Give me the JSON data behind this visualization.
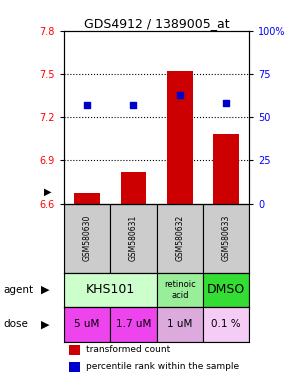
{
  "title": "GDS4912 / 1389005_at",
  "samples": [
    "GSM580630",
    "GSM580631",
    "GSM580632",
    "GSM580633"
  ],
  "bar_values": [
    6.67,
    6.82,
    7.52,
    7.08
  ],
  "scatter_values": [
    57,
    57,
    63,
    58
  ],
  "ylim_left": [
    6.6,
    7.8
  ],
  "ylim_right": [
    0,
    100
  ],
  "yticks_left": [
    6.6,
    6.9,
    7.2,
    7.5,
    7.8
  ],
  "yticks_right": [
    0,
    25,
    50,
    75,
    100
  ],
  "ytick_labels_right": [
    "0",
    "25",
    "50",
    "75",
    "100%"
  ],
  "hlines": [
    7.5,
    7.2,
    6.9
  ],
  "bar_color": "#cc0000",
  "scatter_color": "#0000cc",
  "bar_bottom": 6.6,
  "agent_info": [
    {
      "xspan": [
        -0.5,
        1.5
      ],
      "color": "#ccffcc",
      "text": "KHS101",
      "fontsize": 9
    },
    {
      "xspan": [
        1.5,
        2.5
      ],
      "color": "#99ee99",
      "text": "retinoic\nacid",
      "fontsize": 6
    },
    {
      "xspan": [
        2.5,
        3.5
      ],
      "color": "#33dd33",
      "text": "DMSO",
      "fontsize": 9
    }
  ],
  "dose_labels": [
    "5 uM",
    "1.7 uM",
    "1 uM",
    "0.1 %"
  ],
  "dose_colors": [
    "#ee44ee",
    "#ee44ee",
    "#ddaadd",
    "#f5ccf5"
  ],
  "sample_bg": "#cccccc",
  "legend_bar_color": "#cc0000",
  "legend_scatter_color": "#0000cc",
  "legend_bar_text": "transformed count",
  "legend_scatter_text": "percentile rank within the sample"
}
